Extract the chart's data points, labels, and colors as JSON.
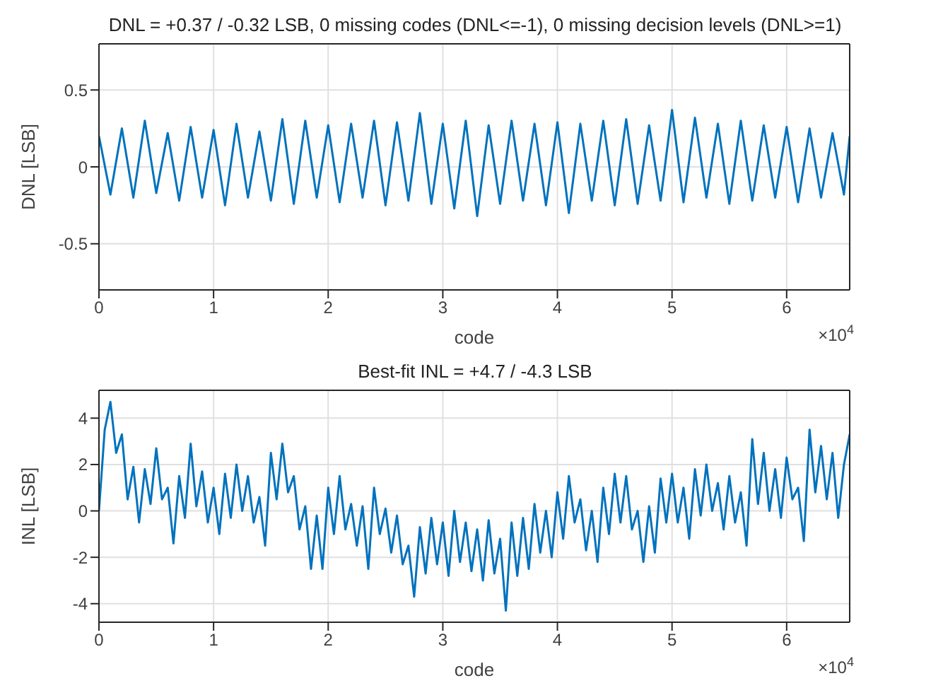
{
  "chart_data": [
    {
      "type": "line",
      "title": "DNL = +0.37 / -0.32 LSB,  0 missing codes (DNL<=-1), 0 missing decision levels (DNL>=1)",
      "xlabel": "code",
      "ylabel": "DNL [LSB]",
      "annotations": [
        "×10$^{4}$"
      ],
      "x": [
        0,
        0.1,
        0.2,
        0.3,
        0.4,
        0.5,
        0.6,
        0.7,
        0.8,
        0.9,
        1.0,
        1.1,
        1.2,
        1.3,
        1.4,
        1.5,
        1.6,
        1.7,
        1.8,
        1.9,
        2.0,
        2.1,
        2.2,
        2.3,
        2.4,
        2.5,
        2.6,
        2.7,
        2.8,
        2.9,
        3.0,
        3.1,
        3.2,
        3.3,
        3.4,
        3.5,
        3.6,
        3.7,
        3.8,
        3.9,
        4.0,
        4.1,
        4.2,
        4.3,
        4.4,
        4.5,
        4.6,
        4.7,
        4.8,
        4.9,
        5.0,
        5.1,
        5.2,
        5.3,
        5.4,
        5.5,
        5.6,
        5.7,
        5.8,
        5.9,
        6.0,
        6.1,
        6.2,
        6.3,
        6.4,
        6.5,
        6.55
      ],
      "series": [
        {
          "color": "#0072bd",
          "values": [
            0.2,
            -0.18,
            0.25,
            -0.2,
            0.3,
            -0.17,
            0.22,
            -0.22,
            0.26,
            -0.2,
            0.24,
            -0.25,
            0.28,
            -0.2,
            0.23,
            -0.22,
            0.31,
            -0.24,
            0.3,
            -0.2,
            0.27,
            -0.23,
            0.28,
            -0.2,
            0.3,
            -0.25,
            0.29,
            -0.22,
            0.35,
            -0.24,
            0.28,
            -0.27,
            0.3,
            -0.32,
            0.27,
            -0.24,
            0.3,
            -0.22,
            0.28,
            -0.25,
            0.29,
            -0.3,
            0.28,
            -0.22,
            0.3,
            -0.25,
            0.31,
            -0.24,
            0.27,
            -0.22,
            0.37,
            -0.23,
            0.32,
            -0.2,
            0.28,
            -0.24,
            0.3,
            -0.22,
            0.27,
            -0.2,
            0.26,
            -0.23,
            0.25,
            -0.2,
            0.22,
            -0.18,
            0.2
          ]
        }
      ],
      "xlim": [
        0,
        6.55
      ],
      "xticks": [
        0,
        1,
        2,
        3,
        4,
        5,
        6
      ],
      "ylim": [
        -0.8,
        0.8
      ],
      "yticks": [
        -0.5,
        0,
        0.5
      ],
      "grid": true,
      "legend": false,
      "marker": "none",
      "line_style": "solid"
    },
    {
      "type": "line",
      "title": "Best-fit INL = +4.7 / -4.3 LSB",
      "xlabel": "code",
      "ylabel": "INL [LSB]",
      "annotations": [
        "×10$^{4}$"
      ],
      "x": [
        0,
        0.05,
        0.1,
        0.15,
        0.2,
        0.25,
        0.3,
        0.35,
        0.4,
        0.45,
        0.5,
        0.55,
        0.6,
        0.65,
        0.7,
        0.75,
        0.8,
        0.85,
        0.9,
        0.95,
        1.0,
        1.05,
        1.1,
        1.15,
        1.2,
        1.25,
        1.3,
        1.35,
        1.4,
        1.45,
        1.5,
        1.55,
        1.6,
        1.65,
        1.7,
        1.75,
        1.8,
        1.85,
        1.9,
        1.95,
        2.0,
        2.05,
        2.1,
        2.15,
        2.2,
        2.25,
        2.3,
        2.35,
        2.4,
        2.45,
        2.5,
        2.55,
        2.6,
        2.65,
        2.7,
        2.75,
        2.8,
        2.85,
        2.9,
        2.95,
        3.0,
        3.05,
        3.1,
        3.15,
        3.2,
        3.25,
        3.3,
        3.35,
        3.4,
        3.45,
        3.5,
        3.55,
        3.6,
        3.65,
        3.7,
        3.75,
        3.8,
        3.85,
        3.9,
        3.95,
        4.0,
        4.05,
        4.1,
        4.15,
        4.2,
        4.25,
        4.3,
        4.35,
        4.4,
        4.45,
        4.5,
        4.55,
        4.6,
        4.65,
        4.7,
        4.75,
        4.8,
        4.85,
        4.9,
        4.95,
        5.0,
        5.05,
        5.1,
        5.15,
        5.2,
        5.25,
        5.3,
        5.35,
        5.4,
        5.45,
        5.5,
        5.55,
        5.6,
        5.65,
        5.7,
        5.75,
        5.8,
        5.85,
        5.9,
        5.95,
        6.0,
        6.05,
        6.1,
        6.15,
        6.2,
        6.25,
        6.3,
        6.35,
        6.4,
        6.45,
        6.5,
        6.55
      ],
      "series": [
        {
          "color": "#0072bd",
          "values": [
            0,
            3.5,
            4.7,
            2.5,
            3.3,
            0.5,
            1.9,
            -0.5,
            1.8,
            0.3,
            2.7,
            0.5,
            1.0,
            -1.4,
            1.5,
            -0.3,
            2.9,
            0.2,
            1.7,
            -0.5,
            1.0,
            -1.0,
            1.6,
            -0.3,
            2.0,
            0,
            1.5,
            -0.5,
            0.6,
            -1.5,
            2.5,
            0.5,
            2.9,
            0.8,
            1.5,
            -0.8,
            0.2,
            -2.5,
            -0.2,
            -2.5,
            1.0,
            -1.0,
            1.5,
            -0.8,
            0.3,
            -1.5,
            0.2,
            -2.5,
            1.0,
            -1.0,
            0.1,
            -1.8,
            -0.2,
            -2.3,
            -1.5,
            -3.7,
            -0.7,
            -2.7,
            -0.3,
            -2.3,
            -0.5,
            -2.8,
            0,
            -2.2,
            -0.5,
            -2.6,
            -0.8,
            -3.0,
            -0.4,
            -2.7,
            -1.2,
            -4.3,
            -0.5,
            -2.8,
            -0.3,
            -2.5,
            0.3,
            -1.8,
            0,
            -2.0,
            0.8,
            -1.2,
            1.5,
            -0.5,
            0.5,
            -1.7,
            0,
            -2.2,
            1.0,
            -1.0,
            1.6,
            -0.5,
            1.5,
            -0.8,
            0,
            -2.2,
            0.2,
            -1.8,
            1.4,
            -0.5,
            1.6,
            -0.5,
            1.0,
            -1.2,
            1.8,
            -0.2,
            2.0,
            0,
            1.2,
            -0.8,
            1.5,
            -0.5,
            0.8,
            -1.5,
            3.1,
            0.3,
            2.5,
            0,
            1.8,
            -0.3,
            2.3,
            0.5,
            1.0,
            -1.3,
            3.5,
            0.8,
            2.8,
            0.5,
            2.5,
            -0.3,
            2.0,
            3.3
          ]
        }
      ],
      "xlim": [
        0,
        6.55
      ],
      "xticks": [
        0,
        1,
        2,
        3,
        4,
        5,
        6
      ],
      "ylim": [
        -4.8,
        5.2
      ],
      "yticks": [
        -4,
        -2,
        0,
        2,
        4
      ],
      "grid": true,
      "legend": false,
      "marker": "none",
      "line_style": "solid"
    }
  ]
}
